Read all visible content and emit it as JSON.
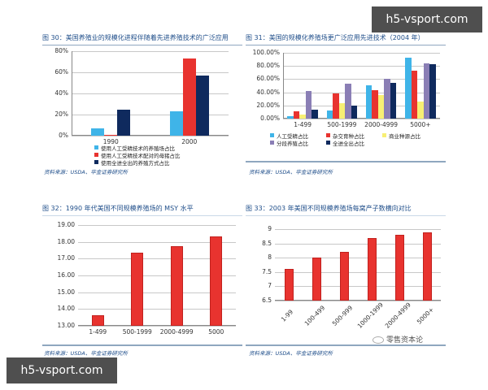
{
  "watermarks": {
    "top_right": "h5-vsport.com",
    "bottom_left": "h5-vsport.com"
  },
  "brand": {
    "text": "零售资本论",
    "icon": "wechat-bubble-icon"
  },
  "colors": {
    "light_blue": "#3fb4e8",
    "red": "#e8332f",
    "yellow": "#f7ef74",
    "purple": "#8a7eb5",
    "navy": "#0f2a5e",
    "title_blue": "#1f4e8a"
  },
  "chart_data": [
    {
      "id": "fig30",
      "type": "bar",
      "title": "图 30：美国养殖业的规模化进程伴随着先进养殖技术的广泛应用",
      "categories": [
        "1990",
        "2000"
      ],
      "series": [
        {
          "name": "使用人工受精技术的养殖场占比",
          "color": "#3fb4e8",
          "values": [
            7,
            23
          ]
        },
        {
          "name": "使用人工受精技术配对的母猪占比",
          "color": "#e8332f",
          "values": [
            1,
            73
          ]
        },
        {
          "name": "使用全进全出的养殖方式占比",
          "color": "#0f2a5e",
          "values": [
            25,
            57
          ]
        }
      ],
      "yticks": [
        "0%",
        "20%",
        "40%",
        "60%",
        "80%"
      ],
      "ylim": [
        0,
        80
      ],
      "xlabel": "",
      "ylabel": "",
      "legend_position": "bottom",
      "source": "资料来源：USDA、华金证券研究所"
    },
    {
      "id": "fig31",
      "type": "bar",
      "title": "图 31：美国的规模化养殖场更广泛应用先进技术（2004 年）",
      "categories": [
        "1-499",
        "500-1999",
        "2000-4999",
        "5000+"
      ],
      "series": [
        {
          "name": "人工受精占比",
          "color": "#3fb4e8",
          "values": [
            4,
            12,
            51,
            92
          ]
        },
        {
          "name": "杂交育种占比",
          "color": "#e8332f",
          "values": [
            11,
            38,
            43,
            73
          ]
        },
        {
          "name": "商业种源占比",
          "color": "#f7ef74",
          "values": [
            6,
            24,
            36,
            26
          ]
        },
        {
          "name": "分段养殖占比",
          "color": "#8a7eb5",
          "values": [
            42,
            53,
            61,
            84
          ]
        },
        {
          "name": "全进全出占比",
          "color": "#0f2a5e",
          "values": [
            14,
            20,
            54,
            83
          ]
        }
      ],
      "yticks": [
        "0.00%",
        "20.00%",
        "40.00%",
        "60.00%",
        "80.00%",
        "100.00%"
      ],
      "ylim": [
        0,
        100
      ],
      "xlabel": "",
      "ylabel": "",
      "legend_position": "bottom",
      "source": "资料来源：USDA、华金证券研究所"
    },
    {
      "id": "fig32",
      "type": "bar",
      "title": "图 32：1990 年代美国不同规模养殖场的 MSY 水平",
      "categories": [
        "1-499",
        "500-1999",
        "2000-4999",
        "5000"
      ],
      "series": [
        {
          "name": "MSY",
          "color": "#e8332f",
          "values": [
            13.65,
            17.35,
            17.75,
            18.3
          ]
        }
      ],
      "yticks": [
        "13.00",
        "14.00",
        "15.00",
        "16.00",
        "17.00",
        "18.00",
        "19.00"
      ],
      "ylim": [
        13,
        19
      ],
      "xlabel": "",
      "ylabel": "",
      "legend_position": "none",
      "source": "资料来源：USDA、华金证券研究所"
    },
    {
      "id": "fig33",
      "type": "bar",
      "title": "图 33：2003 年美国不同规模养殖场每窝产子数横向对比",
      "categories": [
        "1-99",
        "100-499",
        "500-999",
        "1000-1999",
        "2000-4999",
        "5000+"
      ],
      "series": [
        {
          "name": "每窝产子数",
          "color": "#e8332f",
          "values": [
            7.6,
            8.0,
            8.2,
            8.7,
            8.8,
            8.9
          ]
        }
      ],
      "yticks": [
        "6.5",
        "7",
        "7.5",
        "8",
        "8.5",
        "9"
      ],
      "ylim": [
        6.5,
        9
      ],
      "xlabel": "",
      "ylabel": "",
      "legend_position": "none",
      "source": "资料来源：USDA、华金证券研究所"
    }
  ]
}
